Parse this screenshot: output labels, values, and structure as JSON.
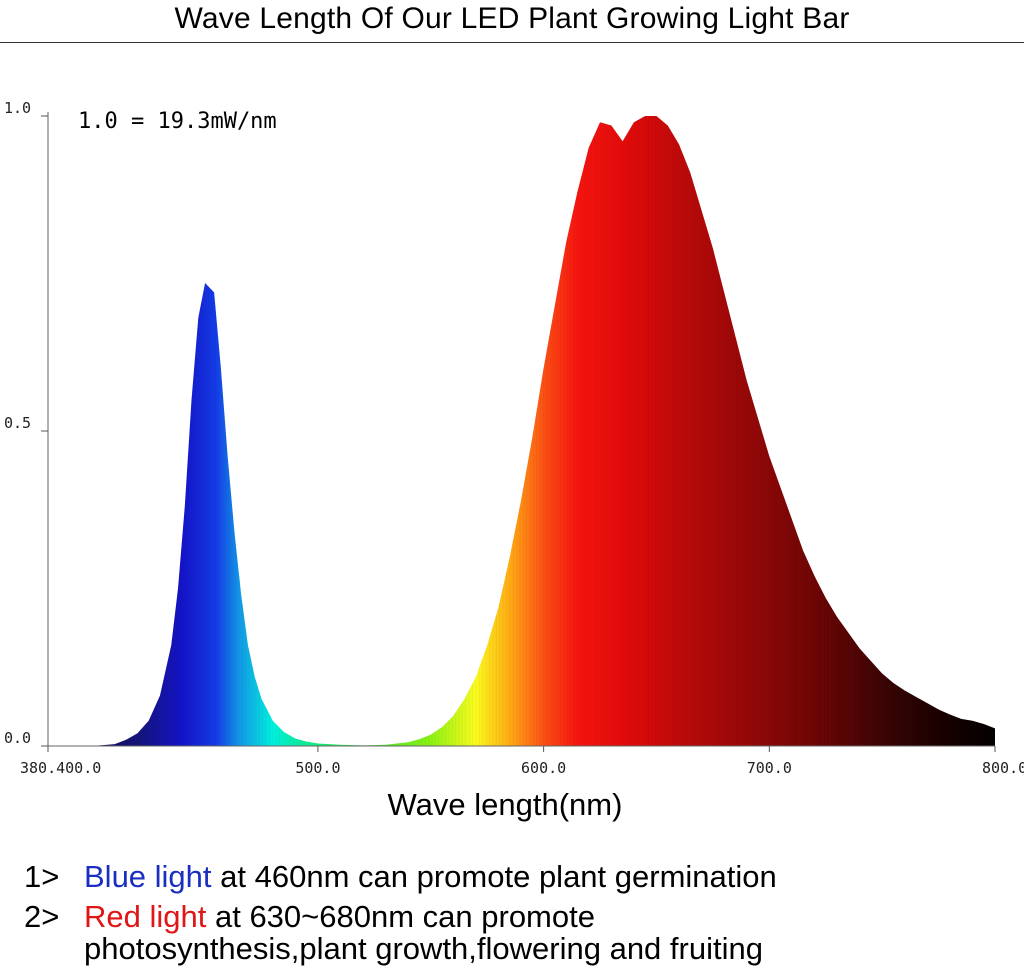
{
  "title": "Wave Length Of Our LED Plant Growing Light Bar",
  "chart_data": {
    "type": "area",
    "title": "Wave Length Of Our LED Plant Growing Light Bar",
    "xlabel": "Wave length(nm)",
    "ylabel": "",
    "xlim": [
      380.4,
      800.0
    ],
    "ylim": [
      0.0,
      1.0
    ],
    "x_ticks": [
      {
        "value": 380.4,
        "label": "380.400.0"
      },
      {
        "value": 500.0,
        "label": "500.0"
      },
      {
        "value": 600.0,
        "label": "600.0"
      },
      {
        "value": 700.0,
        "label": "700.0"
      },
      {
        "value": 800.0,
        "label": "800.0"
      }
    ],
    "y_ticks": [
      {
        "value": 0.0,
        "label": "0.0"
      },
      {
        "value": 0.5,
        "label": "0.5"
      },
      {
        "value": 1.0,
        "label": "1.0"
      }
    ],
    "annotation": "1.0 = 19.3mW/nm",
    "grid": false,
    "series": [
      {
        "x": [
          380.4,
          400,
          410,
          415,
          420,
          425,
          430,
          435,
          438,
          441,
          444,
          447,
          450,
          454,
          457,
          460,
          463,
          466,
          469,
          472,
          475,
          480,
          485,
          490,
          495,
          500,
          510,
          520,
          530,
          540,
          545,
          550,
          555,
          560,
          565,
          570,
          575,
          580,
          585,
          590,
          595,
          600,
          605,
          610,
          615,
          620,
          625,
          630,
          635,
          640,
          645,
          650,
          655,
          660,
          665,
          670,
          675,
          680,
          685,
          690,
          695,
          700,
          705,
          710,
          715,
          720,
          725,
          730,
          735,
          740,
          745,
          750,
          755,
          760,
          765,
          770,
          775,
          780,
          785,
          790,
          795,
          800
        ],
        "y": [
          0.0,
          0.0,
          0.003,
          0.01,
          0.02,
          0.04,
          0.08,
          0.16,
          0.25,
          0.38,
          0.55,
          0.68,
          0.735,
          0.72,
          0.6,
          0.46,
          0.34,
          0.24,
          0.16,
          0.11,
          0.075,
          0.04,
          0.022,
          0.012,
          0.007,
          0.004,
          0.002,
          0.001,
          0.002,
          0.006,
          0.011,
          0.018,
          0.03,
          0.048,
          0.075,
          0.11,
          0.16,
          0.22,
          0.3,
          0.39,
          0.49,
          0.6,
          0.7,
          0.8,
          0.88,
          0.95,
          0.99,
          0.985,
          0.96,
          0.99,
          1.0,
          1.0,
          0.985,
          0.955,
          0.91,
          0.85,
          0.79,
          0.72,
          0.65,
          0.58,
          0.52,
          0.46,
          0.41,
          0.36,
          0.31,
          0.27,
          0.235,
          0.205,
          0.18,
          0.155,
          0.135,
          0.115,
          0.1,
          0.088,
          0.078,
          0.068,
          0.058,
          0.05,
          0.043,
          0.04,
          0.035,
          0.028
        ]
      }
    ],
    "colors": {
      "blue": "#1414c8",
      "red": "#e01010"
    }
  },
  "notes": [
    {
      "num": "1>",
      "highlight": "Blue light",
      "rest": " at 460nm can promote plant germination",
      "highlight_color": "#1a2fbf"
    },
    {
      "num": "2>",
      "highlight": "Red light",
      "rest": " at 630~680nm can promote",
      "cont": "photosynthesis,plant growth,flowering and fruiting",
      "highlight_color": "#e01515"
    }
  ]
}
